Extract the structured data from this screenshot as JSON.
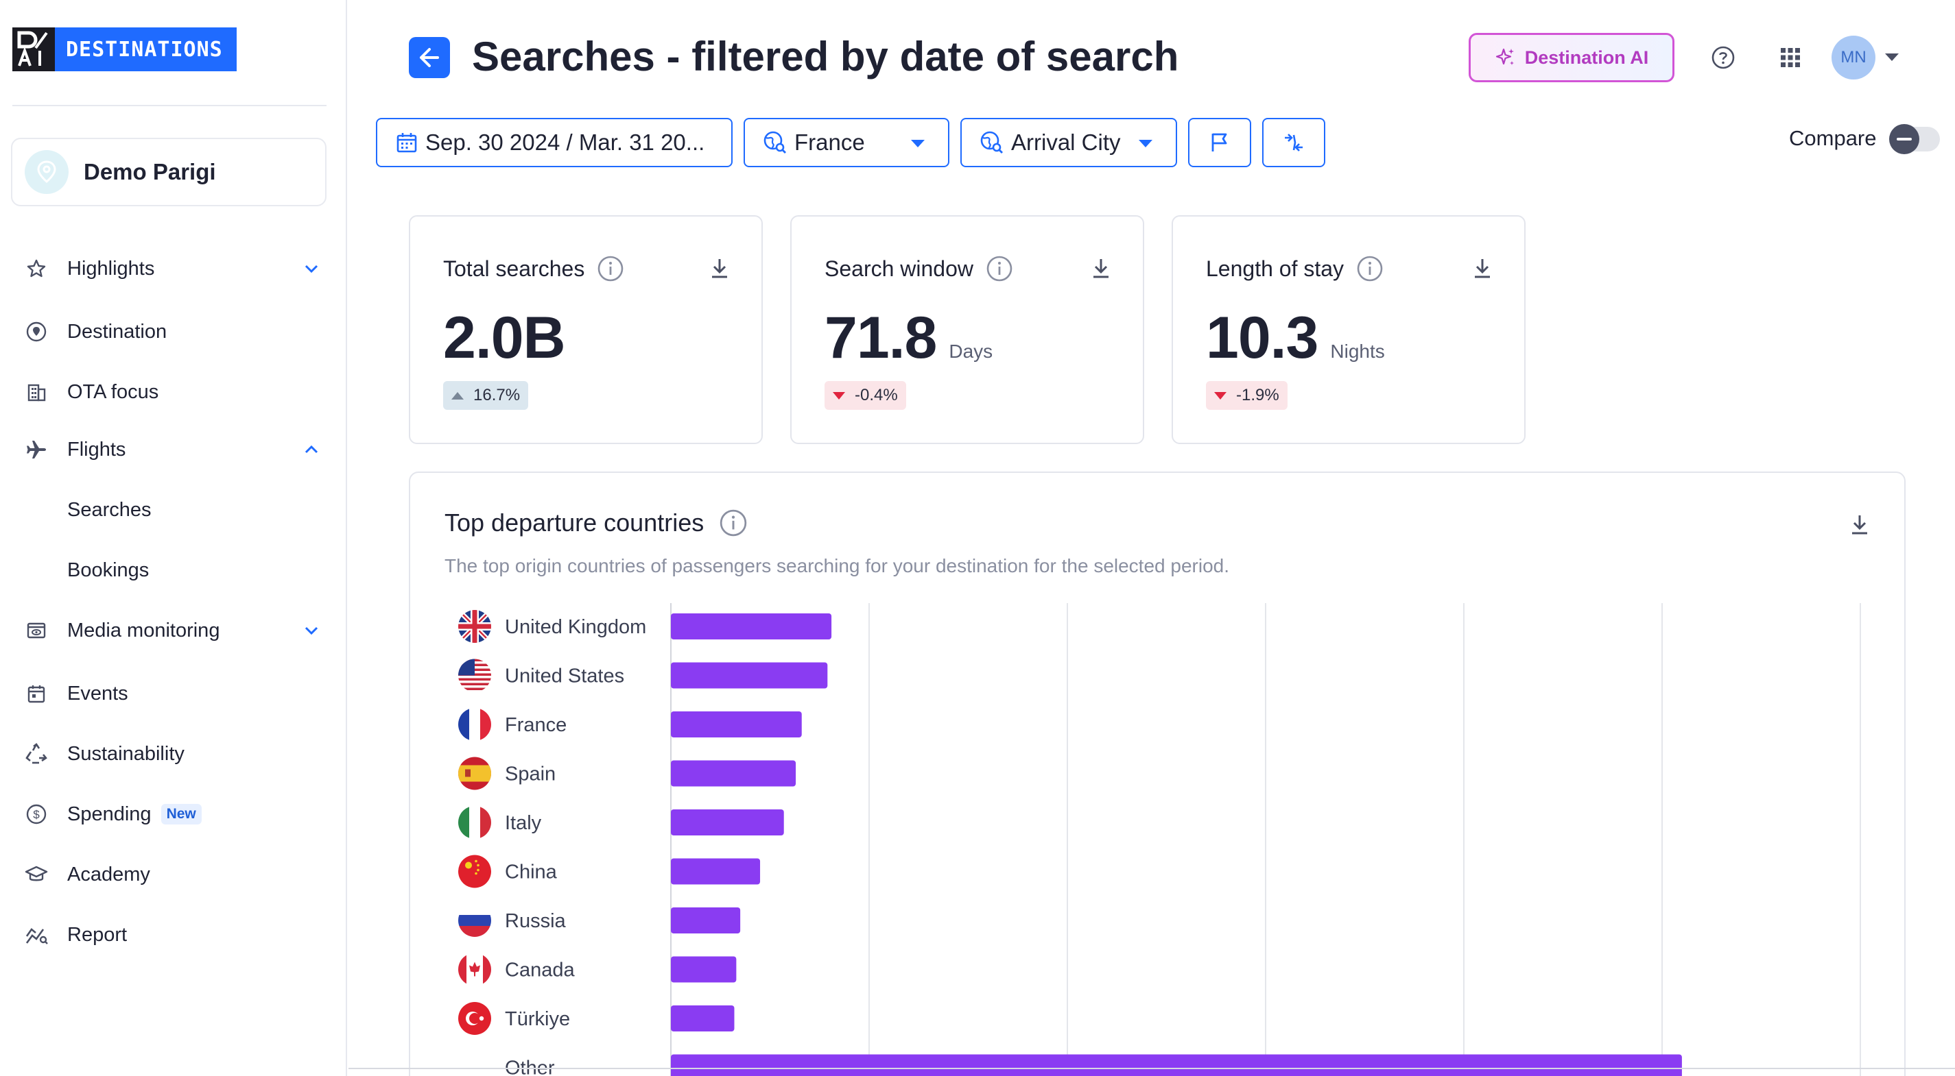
{
  "logo": {
    "mark": "D/ AI",
    "text": "DESTINATIONS"
  },
  "destination": {
    "name": "Demo Parigi"
  },
  "sidebar": {
    "items": [
      {
        "label": "Highlights",
        "icon": "star-icon"
      },
      {
        "label": "Destination",
        "icon": "location-icon"
      },
      {
        "label": "OTA focus",
        "icon": "building-icon"
      },
      {
        "label": "Flights",
        "icon": "plane-icon"
      },
      {
        "label": "Media monitoring",
        "icon": "media-icon"
      },
      {
        "label": "Events",
        "icon": "calendar-icon"
      },
      {
        "label": "Sustainability",
        "icon": "recycle-icon"
      },
      {
        "label": "Spending",
        "icon": "dollar-icon",
        "badge": "New"
      },
      {
        "label": "Academy",
        "icon": "graduation-cap-icon"
      },
      {
        "label": "Report",
        "icon": "report-icon"
      }
    ],
    "flights_sub": [
      "Searches",
      "Bookings"
    ]
  },
  "header": {
    "title_bold": "Searches",
    "title_rest": " - filtered by date of search",
    "ai_button": "Destination AI",
    "avatar": "MN"
  },
  "filters": {
    "date": "Sep. 30 2024 / Mar. 31 20...",
    "country": "France",
    "dimension": "Arrival City"
  },
  "compare": {
    "label": "Compare",
    "enabled": false
  },
  "kpis": [
    {
      "title": "Total searches",
      "value": "2.0B",
      "unit": "",
      "delta": "16.7%",
      "direction": "up"
    },
    {
      "title": "Search window",
      "value": "71.8",
      "unit": "Days",
      "delta": "-0.4%",
      "direction": "down"
    },
    {
      "title": "Length of stay",
      "value": "10.3",
      "unit": "Nights",
      "delta": "-1.9%",
      "direction": "down"
    }
  ],
  "chart_card": {
    "title": "Top departure countries",
    "subtitle": "The top origin countries of passengers searching for your destination for the selected period."
  },
  "chart_data": {
    "type": "bar",
    "orientation": "horizontal",
    "categories": [
      "United Kingdom",
      "United States",
      "France",
      "Spain",
      "Italy",
      "China",
      "Russia",
      "Canada",
      "Türkiye",
      "Other"
    ],
    "values": [
      81,
      79,
      66,
      63,
      57,
      45,
      35,
      33,
      32,
      510
    ],
    "xlim": [
      0,
      600
    ],
    "grid": true,
    "bar_color": "#8a3cf2"
  },
  "colors": {
    "accent": "#1f6bff",
    "bar": "#8a3cf2",
    "ai_border": "#d255d6"
  }
}
